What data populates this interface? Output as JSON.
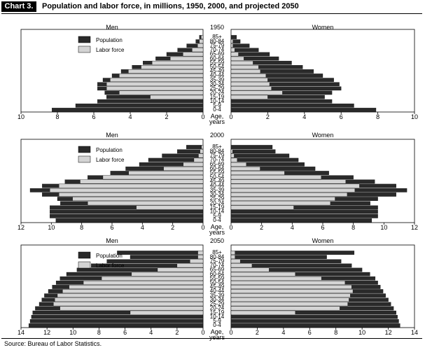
{
  "header": {
    "label": "Chart 3.",
    "title": "Population and labor force, in millions, 1950, 2000, and projected 2050"
  },
  "source": "Source: Bureau of Labor Statistics.",
  "colors": {
    "population": "#2a2a2a",
    "labor_force": "#d4d4d4"
  },
  "chart_data": [
    {
      "type": "bar",
      "orientation": "horizontal-pyramid",
      "year": "1950",
      "left_label": "Men",
      "right_label": "Women",
      "center_label": "Age, years",
      "categories": [
        "85+",
        "80-84",
        "75-79",
        "70-74",
        "65-69",
        "60-64",
        "55-59",
        "50-54",
        "45-49",
        "40-44",
        "35-39",
        "30-34",
        "25-29",
        "20-24",
        "15-19",
        "10-14",
        "5-9",
        "0-4"
      ],
      "xlim": [
        0,
        10
      ],
      "ticks": [
        "10",
        "8",
        "6",
        "4",
        "2",
        "0"
      ],
      "ticks_right": [
        "0",
        "2",
        "4",
        "6",
        "8",
        "10"
      ],
      "legend": [
        "Population",
        "Labor force"
      ],
      "series": [
        {
          "name": "Population",
          "side": "men",
          "values": [
            0.2,
            0.4,
            0.9,
            1.4,
            2.0,
            2.6,
            3.3,
            3.9,
            4.5,
            5.0,
            5.5,
            5.8,
            5.8,
            5.4,
            5.3,
            5.8,
            7.0,
            8.3
          ]
        },
        {
          "name": "Labor force",
          "side": "men",
          "values": [
            0.1,
            0.2,
            0.3,
            0.6,
            1.1,
            1.8,
            2.8,
            3.4,
            4.1,
            4.6,
            5.1,
            5.3,
            5.3,
            4.6,
            2.9,
            0,
            0,
            0
          ]
        },
        {
          "name": "Population",
          "side": "women",
          "values": [
            0.3,
            0.5,
            1.0,
            1.5,
            2.1,
            2.6,
            3.3,
            3.9,
            4.5,
            5.0,
            5.6,
            5.9,
            6.0,
            5.5,
            5.1,
            5.5,
            6.7,
            7.9
          ]
        },
        {
          "name": "Labor force",
          "side": "women",
          "values": [
            0,
            0.1,
            0.1,
            0.2,
            0.4,
            0.7,
            1.2,
            1.5,
            1.6,
            1.9,
            2.0,
            2.1,
            2.2,
            2.8,
            2.0,
            0,
            0,
            0
          ]
        }
      ]
    },
    {
      "type": "bar",
      "orientation": "horizontal-pyramid",
      "year": "2000",
      "left_label": "Men",
      "right_label": "Women",
      "center_label": "Age, years",
      "categories": [
        "85+",
        "80-84",
        "75-79",
        "70-74",
        "65-69",
        "60-64",
        "55-59",
        "50-54",
        "45-49",
        "40-44",
        "35-39",
        "30-34",
        "25-29",
        "20-24",
        "15-19",
        "10-14",
        "5-9",
        "0-4"
      ],
      "xlim": [
        0,
        12
      ],
      "ticks": [
        "12",
        "10",
        "8",
        "6",
        "4",
        "2",
        "0"
      ],
      "ticks_right": [
        "0",
        "2",
        "4",
        "6",
        "8",
        "10",
        "12"
      ],
      "legend": [
        "Population",
        "Labor force"
      ],
      "series": [
        {
          "name": "Population",
          "side": "men",
          "values": [
            1.1,
            1.7,
            2.7,
            3.6,
            4.2,
            5.1,
            6.1,
            7.6,
            9.1,
            10.6,
            11.4,
            10.6,
            9.6,
            9.4,
            10.1,
            10.1,
            10.1,
            9.7
          ]
        },
        {
          "name": "Labor force",
          "side": "men",
          "values": [
            0.1,
            0.2,
            0.3,
            0.6,
            1.3,
            2.6,
            4.9,
            6.6,
            8.1,
            9.5,
            10.1,
            9.5,
            8.6,
            7.6,
            4.4,
            0,
            0,
            0
          ]
        },
        {
          "name": "Population",
          "side": "women",
          "values": [
            2.7,
            2.9,
            3.8,
            4.4,
            4.8,
            5.5,
            6.4,
            8.0,
            9.4,
            10.8,
            11.5,
            10.8,
            9.6,
            9.1,
            9.6,
            9.6,
            9.6,
            9.2
          ]
        },
        {
          "name": "Labor force",
          "side": "women",
          "values": [
            0,
            0.1,
            0.2,
            0.4,
            1.0,
            1.9,
            3.5,
            5.9,
            7.5,
            8.4,
            8.1,
            7.6,
            6.8,
            6.5,
            4.1,
            0,
            0,
            0
          ]
        }
      ]
    },
    {
      "type": "bar",
      "orientation": "horizontal-pyramid",
      "year": "2050",
      "left_label": "Men",
      "right_label": "Women",
      "center_label": "Age, years",
      "categories": [
        "85+",
        "80-84",
        "75-79",
        "70-74",
        "65-69",
        "60-64",
        "55-59",
        "50-54",
        "45-49",
        "40-44",
        "35-39",
        "30-34",
        "25-29",
        "20-24",
        "15-19",
        "10-14",
        "5-9",
        "0-4"
      ],
      "xlim": [
        0,
        14
      ],
      "ticks": [
        "14",
        "12",
        "10",
        "8",
        "6",
        "4",
        "2",
        "0"
      ],
      "ticks_right": [
        "0",
        "2",
        "4",
        "6",
        "8",
        "10",
        "12",
        "14"
      ],
      "legend": [
        "Population",
        "Labor force"
      ],
      "series": [
        {
          "name": "Population",
          "side": "men",
          "values": [
            6.6,
            5.6,
            7.4,
            8.6,
            9.7,
            10.5,
            11.0,
            11.3,
            11.6,
            11.9,
            12.2,
            12.4,
            12.6,
            12.9,
            13.1,
            13.2,
            13.3,
            13.4
          ]
        },
        {
          "name": "Labor force",
          "side": "men",
          "values": [
            0.4,
            0.4,
            1.0,
            2.0,
            3.5,
            5.5,
            7.8,
            9.2,
            10.3,
            10.8,
            11.2,
            11.4,
            11.5,
            11.0,
            5.6,
            0,
            0,
            0
          ]
        },
        {
          "name": "Population",
          "side": "women",
          "values": [
            9.4,
            7.3,
            8.4,
            9.2,
            10.0,
            10.6,
            11.0,
            11.2,
            11.4,
            11.6,
            11.8,
            12.0,
            12.2,
            12.4,
            12.6,
            12.7,
            12.8,
            12.9
          ]
        },
        {
          "name": "Labor force",
          "side": "women",
          "values": [
            0.3,
            0.3,
            0.7,
            1.6,
            2.9,
            4.9,
            6.9,
            8.7,
            9.2,
            9.3,
            9.1,
            9.0,
            8.9,
            8.3,
            4.9,
            0,
            0,
            0
          ]
        }
      ]
    }
  ]
}
